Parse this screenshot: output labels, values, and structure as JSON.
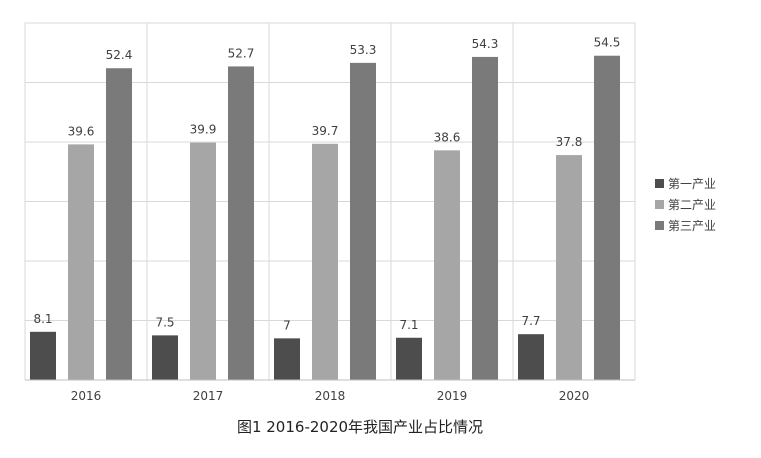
{
  "chart_data": {
    "type": "bar",
    "title": "",
    "caption": "图1 2016-2020年我国产业占比情况",
    "categories": [
      "2016",
      "2017",
      "2018",
      "2019",
      "2020"
    ],
    "series": [
      {
        "name": "第一产业",
        "values": [
          8.1,
          7.5,
          7,
          7.1,
          7.7
        ],
        "labels": [
          "8.1",
          "7.5",
          "7",
          "7.1",
          "7.7"
        ],
        "color": "#4d4d4d"
      },
      {
        "name": "第二产业",
        "values": [
          39.6,
          39.9,
          39.7,
          38.6,
          37.8
        ],
        "labels": [
          "39.6",
          "39.9",
          "39.7",
          "38.6",
          "37.8"
        ],
        "color": "#a6a6a6"
      },
      {
        "name": "第三产业",
        "values": [
          52.4,
          52.7,
          53.3,
          54.3,
          54.5
        ],
        "labels": [
          "52.4",
          "52.7",
          "53.3",
          "54.3",
          "54.5"
        ],
        "color": "#7a7a7a"
      }
    ],
    "xlabel": "",
    "ylabel": "",
    "ylim": [
      0,
      60
    ],
    "grid": true,
    "legend_position": "right"
  }
}
